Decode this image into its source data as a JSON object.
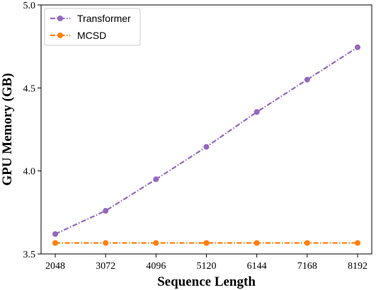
{
  "chart_data": {
    "type": "line",
    "x": [
      2048,
      3072,
      4096,
      5120,
      6144,
      7168,
      8192
    ],
    "series": [
      {
        "name": "Transformer",
        "values": [
          3.62,
          3.76,
          3.95,
          4.145,
          4.355,
          4.55,
          4.745
        ],
        "color": "#9467bd",
        "linestyle": "dash-dot",
        "marker": "circle"
      },
      {
        "name": "MCSD",
        "values": [
          3.566,
          3.566,
          3.566,
          3.566,
          3.566,
          3.566,
          3.566
        ],
        "color": "#ff7f0e",
        "linestyle": "dash-dot",
        "marker": "circle"
      }
    ],
    "xlabel": "Sequence Length",
    "ylabel": "GPU Memory (GB)",
    "xticks": [
      "2048",
      "3072",
      "4096",
      "5120",
      "6144",
      "7168",
      "8192"
    ],
    "yticks": [
      "3.5",
      "4.0",
      "4.5",
      "5.0"
    ],
    "ylim": [
      3.5,
      5.0
    ],
    "grid": false,
    "legend_position": "top-left"
  }
}
